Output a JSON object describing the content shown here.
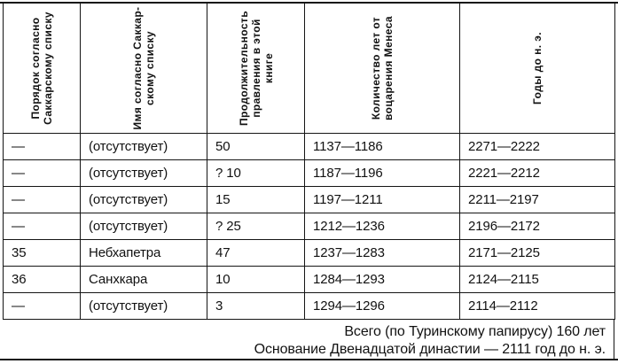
{
  "table": {
    "col_headers": [
      "Порядок согласно\nСаккарскому списку",
      "Имя согласно Саккар-\nскому списку",
      "Продолжительность\nправления в этой\nкниге",
      "Количество лет от\nвоцарения Менеса",
      "Годы до н. э."
    ],
    "rows": [
      [
        "—",
        "(отсутствует)",
        "50",
        "1137—1186",
        "2271—2222"
      ],
      [
        "—",
        "(отсутствует)",
        "? 10",
        "1187—1196",
        "2221—2212"
      ],
      [
        "—",
        "(отсутствует)",
        "15",
        "1197—1211",
        "2211—2197"
      ],
      [
        "—",
        "(отсутствует)",
        "? 25",
        "1212—1236",
        "2196—2172"
      ],
      [
        "35",
        "Небхапетра",
        "47",
        "1237—1283",
        "2171—2125"
      ],
      [
        "36",
        "Санхкара",
        "10",
        "1284—1293",
        "2124—2115"
      ],
      [
        "—",
        "(отсутствует)",
        "3",
        "1294—1296",
        "2114—2112"
      ]
    ]
  },
  "footer": {
    "total": "Всего (по Туринскому папирусу) 160 лет",
    "foundation": "Основание Двенадцатой династии — 2111 год до н. э."
  },
  "colors": {
    "ink": "#111111",
    "paper": "#ffffff"
  }
}
